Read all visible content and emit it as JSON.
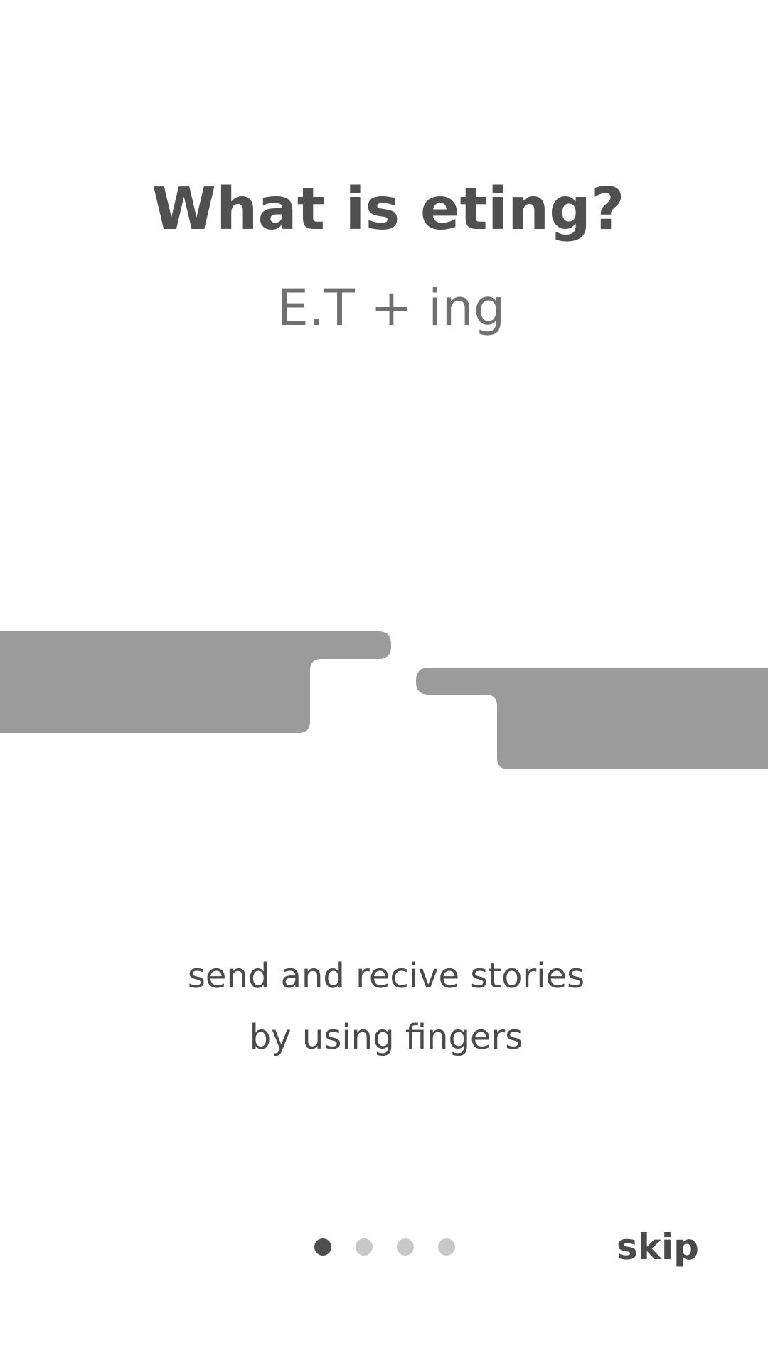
{
  "onboarding": {
    "title": "What is eting?",
    "subtitle": "E.T + ing",
    "description_line1": "send and recive stories",
    "description_line2": "by using fingers",
    "skip_label": "skip"
  },
  "pager": {
    "total_pages": 4,
    "current_page": 1
  },
  "colors": {
    "background": "#ffffff",
    "title": "#505050",
    "subtitle": "#707070",
    "body_text": "#4a4a4a",
    "illustration": "#9b9b9b",
    "dot_active": "#4e4e4e",
    "dot_inactive": "#c8c8c8"
  }
}
